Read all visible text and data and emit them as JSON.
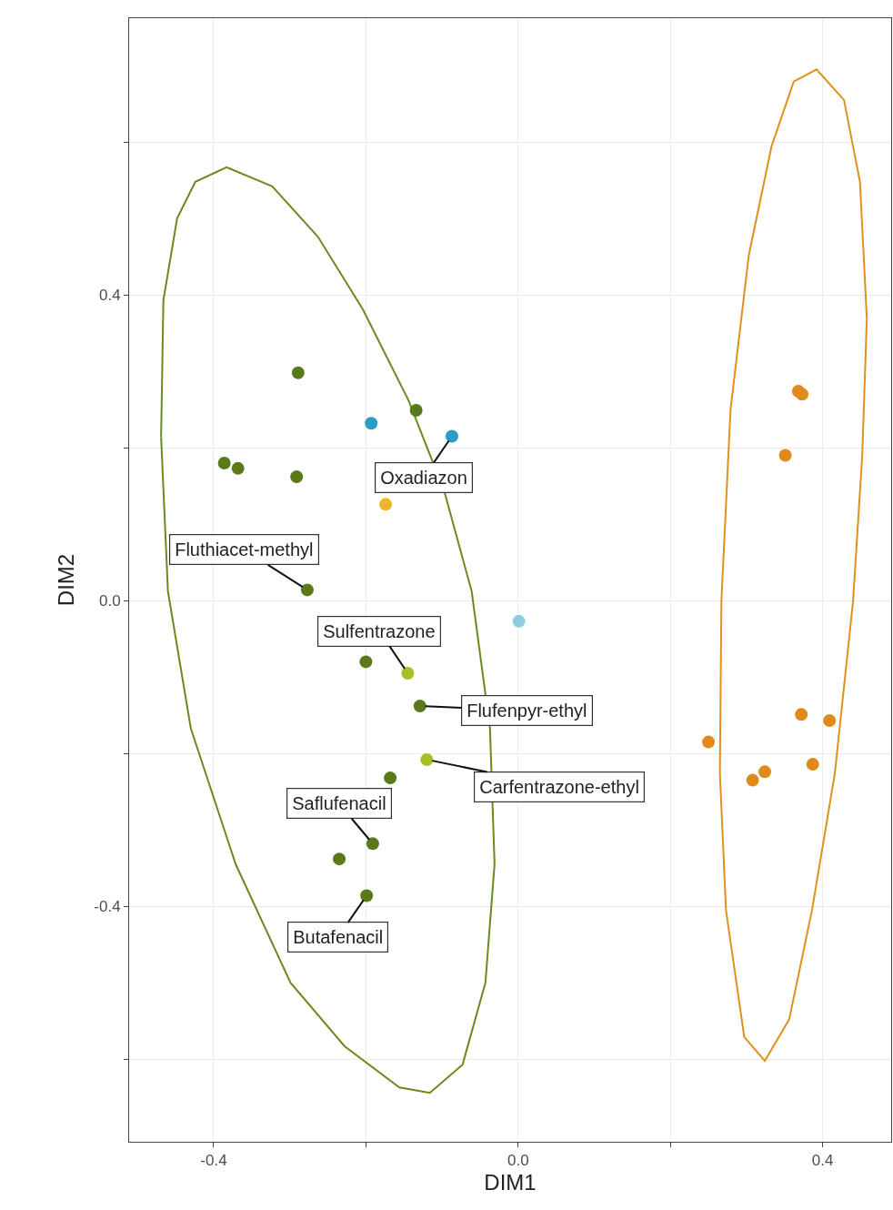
{
  "chart_data": {
    "type": "scatter",
    "xlabel": "DIM1",
    "ylabel": "DIM2",
    "xlim": [
      -0.511,
      0.49
    ],
    "ylim": [
      -0.708,
      0.762
    ],
    "xticks": [
      -0.4,
      {
        "value": -0.2,
        "label": null
      },
      {
        "value": 0,
        "label": "0.0"
      },
      {
        "value": 0.2,
        "label": null
      },
      0.4
    ],
    "yticks": [
      {
        "value": -0.6,
        "label": null
      },
      -0.4,
      {
        "value": -0.2,
        "label": null
      },
      {
        "value": 0,
        "label": "0.0"
      },
      {
        "value": 0.2,
        "label": null
      },
      0.4,
      {
        "value": 0.6,
        "label": null
      }
    ],
    "grid": true,
    "marker": "circle",
    "series": [
      {
        "color": "#5a7a1a",
        "x": [
          -0.289,
          -0.134,
          -0.386,
          -0.368,
          -0.291,
          -0.277,
          -0.2,
          -0.129,
          -0.168,
          -0.191,
          -0.235,
          -0.199
        ],
        "values": [
          0.298,
          0.249,
          0.18,
          0.173,
          0.162,
          0.014,
          -0.08,
          -0.138,
          -0.232,
          -0.318,
          -0.338,
          -0.386
        ]
      },
      {
        "color": "#a8bf2a",
        "x": [
          -0.145,
          -0.12
        ],
        "values": [
          -0.095,
          -0.208
        ]
      },
      {
        "color": "#2b9cc4",
        "x": [
          -0.193,
          -0.087
        ],
        "values": [
          0.232,
          0.215
        ]
      },
      {
        "color": "#8ecde0",
        "x": [
          0.001
        ],
        "values": [
          -0.027
        ]
      },
      {
        "color": "#f0b52a",
        "x": [
          -0.174
        ],
        "values": [
          0.126
        ]
      },
      {
        "color": "#e08a1a",
        "x": [
          0.368,
          0.373,
          0.351,
          0.25,
          0.372,
          0.409,
          0.308,
          0.324,
          0.387
        ],
        "values": [
          0.274,
          0.27,
          0.19,
          -0.185,
          -0.149,
          -0.157,
          -0.235,
          -0.224,
          -0.214
        ]
      },
      {
        "type": "line",
        "line_style": "solid",
        "marker": "none",
        "color": "#6b8a1e",
        "x": [
          -0.469,
          -0.466,
          -0.448,
          -0.424,
          -0.383,
          -0.323,
          -0.263,
          -0.204,
          -0.144,
          -0.097,
          -0.061,
          -0.037,
          -0.031,
          null,
          -0.469,
          -0.46,
          -0.43,
          -0.371,
          -0.299,
          -0.228,
          -0.156,
          -0.116,
          -0.073,
          -0.043,
          -0.031
        ],
        "values": [
          0.214,
          0.393,
          0.5,
          0.548,
          0.567,
          0.542,
          0.476,
          0.381,
          0.262,
          0.143,
          0.012,
          -0.167,
          -0.345,
          null,
          0.214,
          0.012,
          -0.167,
          -0.345,
          -0.5,
          -0.583,
          -0.637,
          -0.644,
          -0.607,
          -0.5,
          -0.345
        ]
      },
      {
        "type": "line",
        "line_style": "solid",
        "marker": "none",
        "color": "#e0901e",
        "x": [
          0.265,
          0.267,
          0.279,
          0.303,
          0.333,
          0.362,
          0.392,
          0.428,
          0.449,
          0.458,
          null,
          0.265,
          0.273,
          0.297,
          0.324,
          0.356,
          0.386,
          0.416,
          0.44,
          0.452,
          0.458
        ],
        "values": [
          -0.226,
          0.0,
          0.25,
          0.452,
          0.595,
          0.679,
          0.695,
          0.655,
          0.548,
          0.369,
          null,
          -0.226,
          -0.405,
          -0.571,
          -0.602,
          -0.548,
          -0.405,
          -0.226,
          0.0,
          0.19,
          0.369
        ]
      }
    ],
    "annotations": [
      {
        "text": "Oxadiazon",
        "x": -0.087,
        "y": 0.215
      },
      {
        "text": "Fluthiacet-methyl",
        "x": -0.277,
        "y": 0.014
      },
      {
        "text": "Sulfentrazone",
        "x": -0.145,
        "y": -0.095
      },
      {
        "text": "Flufenpyr-ethyl",
        "x": -0.129,
        "y": -0.138
      },
      {
        "text": "Carfentrazone-ethyl",
        "x": -0.12,
        "y": -0.208
      },
      {
        "text": "Saflufenacil",
        "x": -0.191,
        "y": -0.318
      },
      {
        "text": "Butafenacil",
        "x": -0.199,
        "y": -0.386
      }
    ]
  }
}
